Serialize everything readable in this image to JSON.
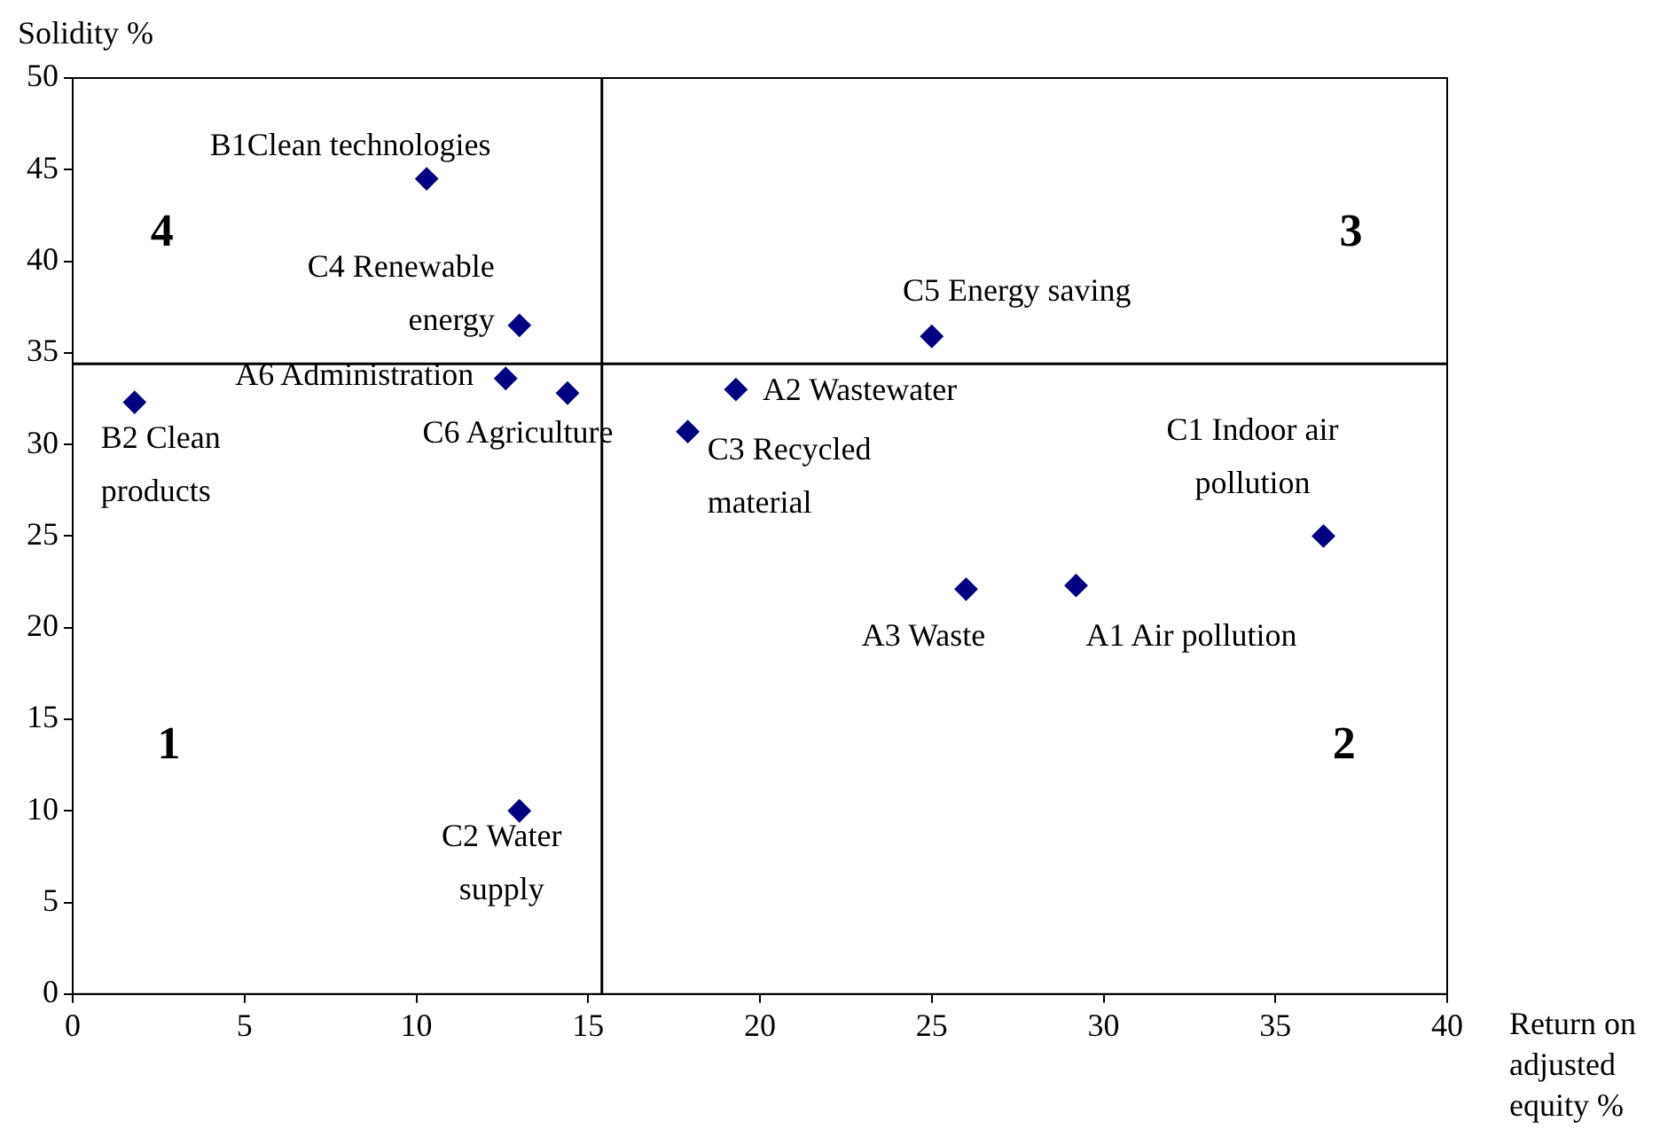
{
  "chart_data": {
    "type": "scatter",
    "xlabel": "Return on adjusted equity %",
    "ylabel": "Solidity %",
    "xlim": [
      0,
      40
    ],
    "xticks": [
      0,
      5,
      10,
      15,
      20,
      25,
      30,
      35,
      40
    ],
    "ylim": [
      0,
      50
    ],
    "yticks": [
      0,
      5,
      10,
      15,
      20,
      25,
      30,
      35,
      40,
      45,
      50
    ],
    "grid": false,
    "legend": false,
    "marker": "diamond",
    "series": [
      {
        "name": "B1Clean technologies",
        "color": "#000080",
        "x": [
          10.3
        ],
        "values": [
          44.5
        ]
      },
      {
        "name": "C4 Renewable energy",
        "color": "#000080",
        "x": [
          13.0
        ],
        "values": [
          36.5
        ]
      },
      {
        "name": "A6 Administration",
        "color": "#000080",
        "x": [
          12.6
        ],
        "values": [
          33.6
        ]
      },
      {
        "name": "C6 Agriculture",
        "color": "#000080",
        "x": [
          14.4
        ],
        "values": [
          32.8
        ]
      },
      {
        "name": "B2 Clean products",
        "color": "#000080",
        "x": [
          1.8
        ],
        "values": [
          32.3
        ]
      },
      {
        "name": "A2 Wastewater",
        "color": "#000080",
        "x": [
          19.3
        ],
        "values": [
          33.0
        ]
      },
      {
        "name": "C3 Recycled material",
        "color": "#000080",
        "x": [
          17.9
        ],
        "values": [
          30.7
        ]
      },
      {
        "name": "C5 Energy saving",
        "color": "#000080",
        "x": [
          25.0
        ],
        "values": [
          35.9
        ]
      },
      {
        "name": "C1 Indoor air pollution",
        "color": "#000080",
        "x": [
          36.4
        ],
        "values": [
          25.0
        ]
      },
      {
        "name": "A3 Waste",
        "color": "#000080",
        "x": [
          26.0
        ],
        "values": [
          22.1
        ]
      },
      {
        "name": "A1 Air pollution",
        "color": "#000080",
        "x": [
          29.2
        ],
        "values": [
          22.3
        ]
      },
      {
        "name": "C2 Water supply",
        "color": "#000080",
        "x": [
          13.0
        ],
        "values": [
          10.0
        ]
      }
    ],
    "ref_lines": [
      {
        "axis": "x",
        "value": 15.4,
        "color": "#000000"
      },
      {
        "axis": "y",
        "value": 34.4,
        "color": "#000000"
      }
    ],
    "annotations": [
      "4",
      "3",
      "1",
      "2"
    ]
  }
}
